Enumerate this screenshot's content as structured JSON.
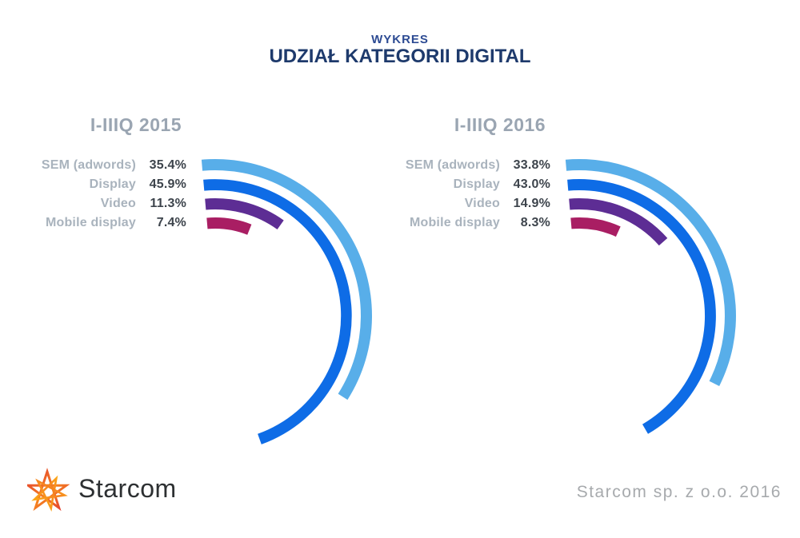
{
  "title": {
    "eyebrow": "WYKRES",
    "heading": "UDZIAŁ KATEGORII DIGITAL"
  },
  "footer": {
    "brand": "Starcom",
    "credit": "Starcom sp. z o.o. 2016"
  },
  "colors": {
    "eyebrow_blue": "#2d4b93",
    "heading_navy": "#1e3a6c",
    "period_gray": "#9aa5b2",
    "label_gray": "#a9b3bd",
    "value_dark": "#3d444c",
    "credit_gray": "#a7aaad",
    "sem_light_blue": "#58aee9",
    "display_blue": "#0e6ce6",
    "video_purple": "#5d2d94",
    "mobile_magenta": "#a91e63",
    "logo_orange": "#f58220",
    "logo_red": "#e23b33",
    "logo_yellow": "#fdb515"
  },
  "chart_data": [
    {
      "type": "bar",
      "variant": "radial-arc",
      "title": "I-IIIQ 2015",
      "categories": [
        "SEM (adwords)",
        "Display",
        "Video",
        "Mobile display"
      ],
      "values": [
        35.4,
        45.9,
        11.3,
        7.4
      ],
      "value_labels": [
        "35.4%",
        "45.9%",
        "11.3%",
        "7.4%"
      ],
      "unit": "%",
      "colors": [
        "#58aee9",
        "#0e6ce6",
        "#5d2d94",
        "#a91e63"
      ],
      "legend_position": "left",
      "angle_scale_deg_per_percent": 3.6,
      "start_angle_deg": -5
    },
    {
      "type": "bar",
      "variant": "radial-arc",
      "title": "I-IIIQ 2016",
      "categories": [
        "SEM (adwords)",
        "Display",
        "Video",
        "Mobile display"
      ],
      "values": [
        33.8,
        43.0,
        14.9,
        8.3
      ],
      "value_labels": [
        "33.8%",
        "43.0%",
        "14.9%",
        "8.3%"
      ],
      "unit": "%",
      "colors": [
        "#58aee9",
        "#0e6ce6",
        "#5d2d94",
        "#a91e63"
      ],
      "legend_position": "left",
      "angle_scale_deg_per_percent": 3.6,
      "start_angle_deg": -5
    }
  ]
}
